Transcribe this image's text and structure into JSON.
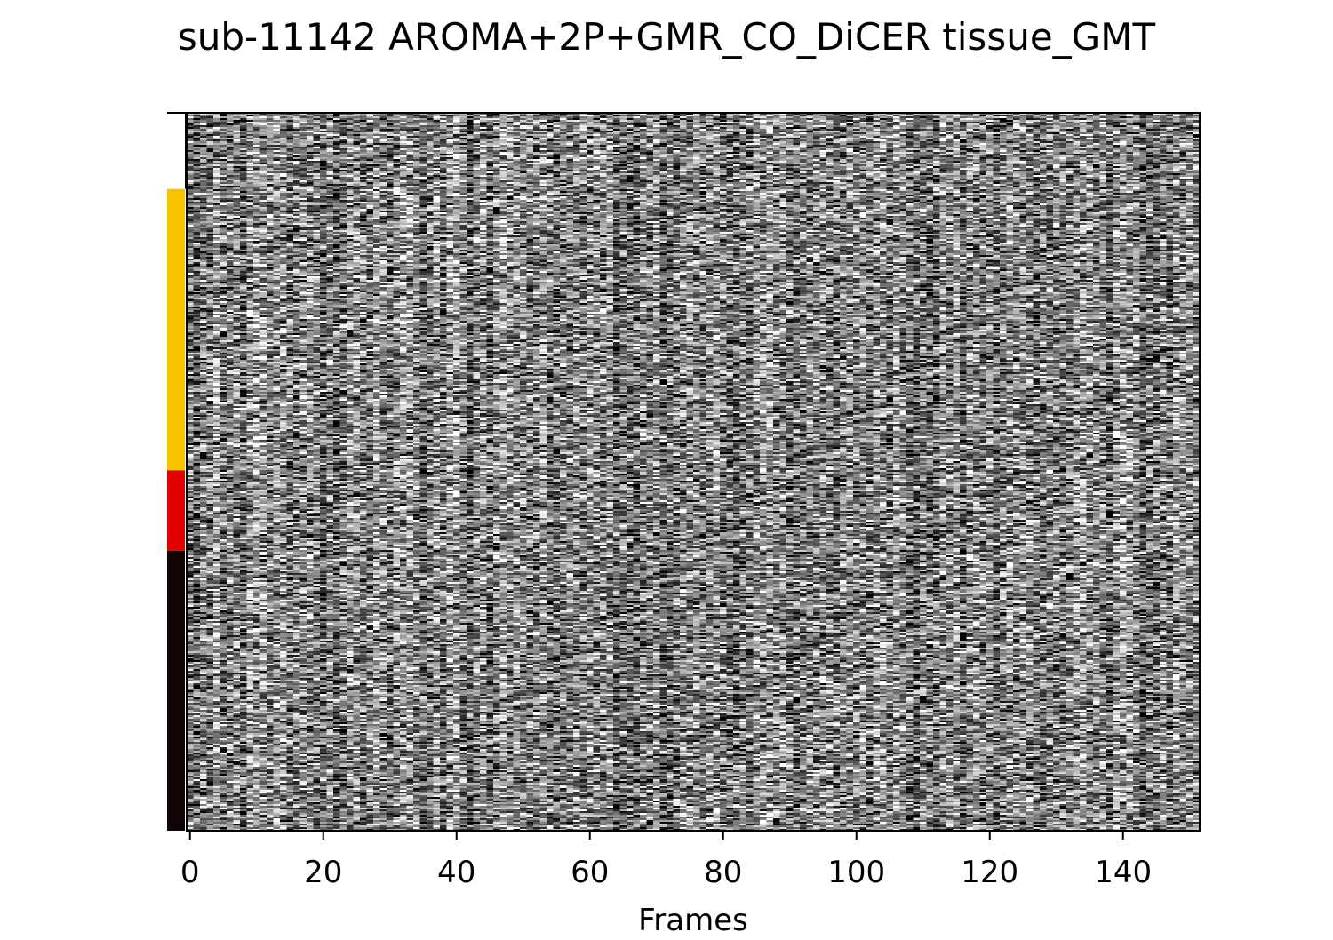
{
  "chart_data": {
    "type": "heatmap",
    "title": "sub-11142 AROMA+2P+GMR_CO_DiCER tissue_GMT",
    "xlabel": "Frames",
    "ylabel": "",
    "xlim": [
      -0.5,
      151.5
    ],
    "x_ticks": [
      0,
      20,
      40,
      60,
      80,
      100,
      120,
      140
    ],
    "colormap": "gray",
    "values_description_hidden": "",
    "tissue_bands": [
      {
        "label": "",
        "fraction": 0.106,
        "color": "#ffffff"
      },
      {
        "label": "",
        "fraction": 0.392,
        "color": "#f7c200"
      },
      {
        "label": "",
        "fraction": 0.112,
        "color": "#e00000"
      },
      {
        "label": "",
        "fraction": 0.39,
        "color": "#100404"
      }
    ]
  }
}
